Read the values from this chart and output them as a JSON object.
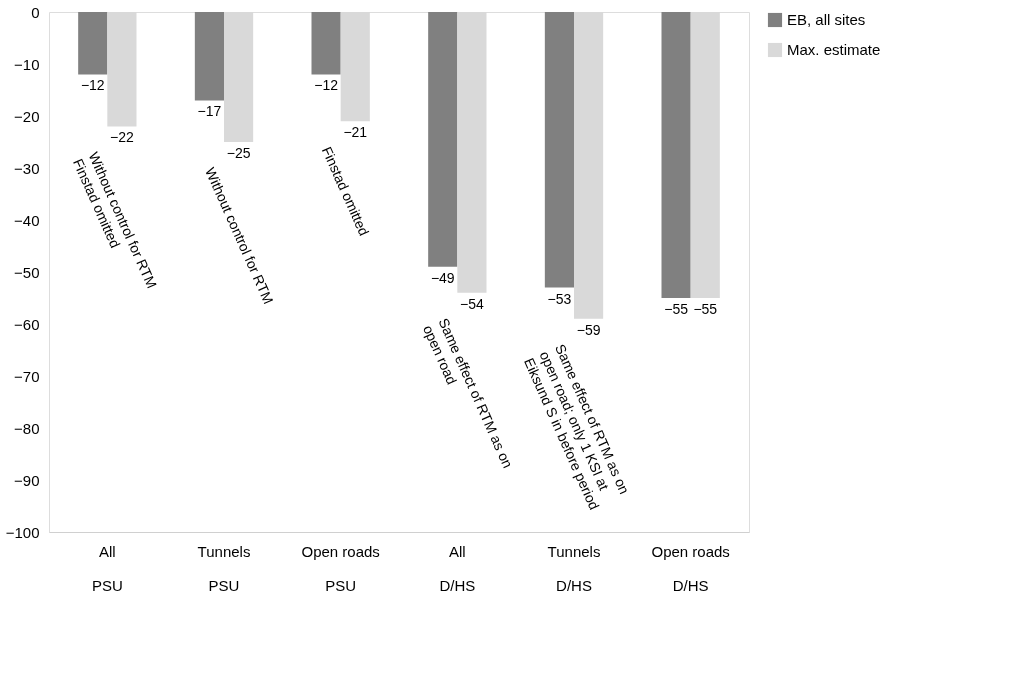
{
  "chart_data": {
    "type": "bar",
    "categories": [
      "All\nPSU",
      "Tunnels\nPSU",
      "Open roads\nPSU",
      "All\nD/HS",
      "Tunnels\nD/HS",
      "Open roads\nD/HS"
    ],
    "series": [
      {
        "name": "EB, all sites",
        "color": "#808080",
        "values": [
          -12,
          -17,
          -12,
          -49,
          -53,
          -55
        ]
      },
      {
        "name": "Max. estimate",
        "color": "#d9d9d9",
        "values": [
          -22,
          -25,
          -21,
          -54,
          -59,
          -55
        ]
      }
    ],
    "ylim": [
      -100,
      0
    ],
    "yticks": [
      0,
      -10,
      -20,
      -30,
      -40,
      -50,
      -60,
      -70,
      -80,
      -90,
      -100
    ],
    "data_labels": true,
    "grid": false,
    "legend": "right",
    "annotations": [
      {
        "text": "Without control for RTM\nFinstad omitted",
        "x": "All\nPSU",
        "y": -22
      },
      {
        "text": "Without control for RTM",
        "x": "Tunnels\nPSU",
        "y": -25
      },
      {
        "text": "Finstad omitted",
        "x": "Open roads\nPSU",
        "y": -21
      },
      {
        "text": "Same effect of RTM as on\nopen road",
        "x": "All\nD/HS",
        "y": -54
      },
      {
        "text": "Same effect of RTM as on\nopen road; only 1 KSI at\nEiksund S in before period",
        "x": "Tunnels\nD/HS",
        "y": -59
      }
    ]
  }
}
